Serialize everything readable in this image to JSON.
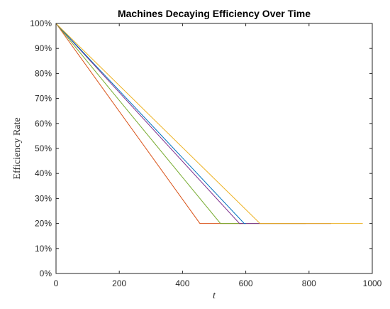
{
  "chart_data": {
    "type": "line",
    "title": "Machines Decaying Efficiency Over Time",
    "xlabel": "t",
    "ylabel": "Efficiency Rate",
    "xlim": [
      0,
      1000
    ],
    "ylim": [
      0,
      100
    ],
    "xticks": [
      0,
      200,
      400,
      600,
      800,
      1000
    ],
    "xtick_labels": [
      "0",
      "200",
      "400",
      "600",
      "800",
      "1000"
    ],
    "yticks": [
      0,
      10,
      20,
      30,
      40,
      50,
      60,
      70,
      80,
      90,
      100
    ],
    "ytick_labels": [
      "0%",
      "10%",
      "20%",
      "30%",
      "40%",
      "50%",
      "60%",
      "70%",
      "80%",
      "90%",
      "100%"
    ],
    "grid": false,
    "series": [
      {
        "color": "#D95319",
        "x": [
          0,
          455,
          590
        ],
        "y": [
          100,
          20,
          20
        ]
      },
      {
        "color": "#77AC30",
        "x": [
          0,
          520,
          790
        ],
        "y": [
          100,
          20,
          20
        ]
      },
      {
        "color": "#7E2F8E",
        "x": [
          0,
          580,
          870
        ],
        "y": [
          100,
          20,
          20
        ]
      },
      {
        "color": "#0072BD",
        "x": [
          0,
          595,
          600
        ],
        "y": [
          100,
          20,
          20
        ]
      },
      {
        "color": "#EDB120",
        "x": [
          0,
          645,
          970
        ],
        "y": [
          100,
          20,
          20
        ]
      }
    ]
  }
}
